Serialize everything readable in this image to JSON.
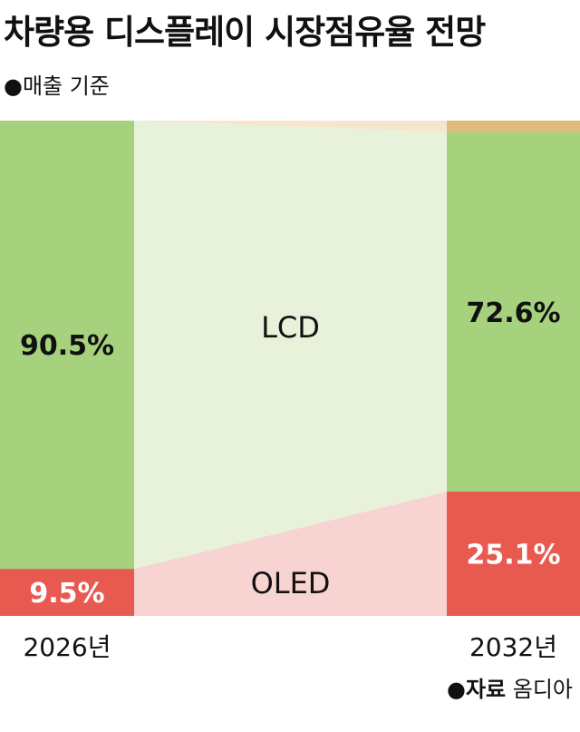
{
  "header": {
    "title": "차량용 디스플레이 시장점유율 전망",
    "subtitle": "●매출 기준"
  },
  "source": {
    "label": "●자료",
    "name": "옴디아"
  },
  "chart_data": {
    "type": "bar",
    "stacked": true,
    "unit": "%",
    "categories": [
      "2026년",
      "2032년"
    ],
    "series": [
      {
        "name": "OLED",
        "values": [
          9.5,
          25.1
        ],
        "labels": [
          "9.5%",
          "25.1%"
        ],
        "color": "#e85a50",
        "flow_color": "#f7d3d1"
      },
      {
        "name": "LCD",
        "values": [
          90.5,
          72.6
        ],
        "labels": [
          "90.5%",
          "72.6%"
        ],
        "color": "#a6d17d",
        "flow_color": "#e8f1da"
      },
      {
        "name": "",
        "values": [
          0,
          2.3
        ],
        "labels": [
          "",
          ""
        ],
        "color": "#e0bc7c",
        "flow_color": "#f5e6cc"
      }
    ],
    "ylim": [
      0,
      100
    ]
  }
}
